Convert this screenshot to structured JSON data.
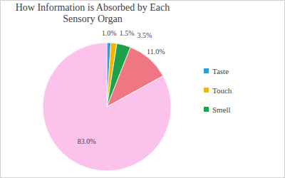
{
  "chart_data": {
    "type": "pie",
    "title": "How Information is Absorbed by Each Sensory Organ",
    "categories": [
      "Taste",
      "Touch",
      "Smell",
      null,
      null
    ],
    "values": [
      1.0,
      1.5,
      3.5,
      11.0,
      83.0
    ],
    "value_labels": [
      "1.0%",
      "1.5%",
      "3.5%",
      "11.0%",
      "83.0%"
    ],
    "colors": [
      "#2f9ddb",
      "#f4b400",
      "#1fa04a",
      "#ef7683",
      "#fbc2ec"
    ],
    "data_labels": true
  }
}
